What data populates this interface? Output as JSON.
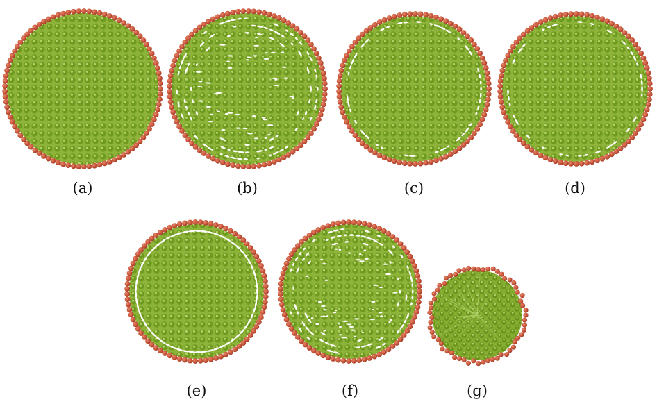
{
  "panels": [
    {
      "id": "a",
      "caption": "(a)",
      "variant": "lattice"
    },
    {
      "id": "b",
      "caption": "(b)",
      "variant": "broken-voids"
    },
    {
      "id": "c",
      "caption": "(c)",
      "variant": "ring-gaps"
    },
    {
      "id": "d",
      "caption": "(d)",
      "variant": "ring-gaps"
    },
    {
      "id": "e",
      "caption": "(e)",
      "variant": "white-ring"
    },
    {
      "id": "f",
      "caption": "(f)",
      "variant": "broken-voids"
    },
    {
      "id": "g",
      "caption": "(g)",
      "variant": "disordered"
    }
  ],
  "colors": {
    "interior_fill": "#8db33a",
    "interior_bead": "#6e9a1f",
    "interior_bead_light": "#a9cc5a",
    "interior_grid": "#557a14",
    "shell_bead": "#c8553a",
    "shell_bead_dark": "#9e3a26",
    "void": "#ffffff",
    "background": "#ffffff"
  }
}
